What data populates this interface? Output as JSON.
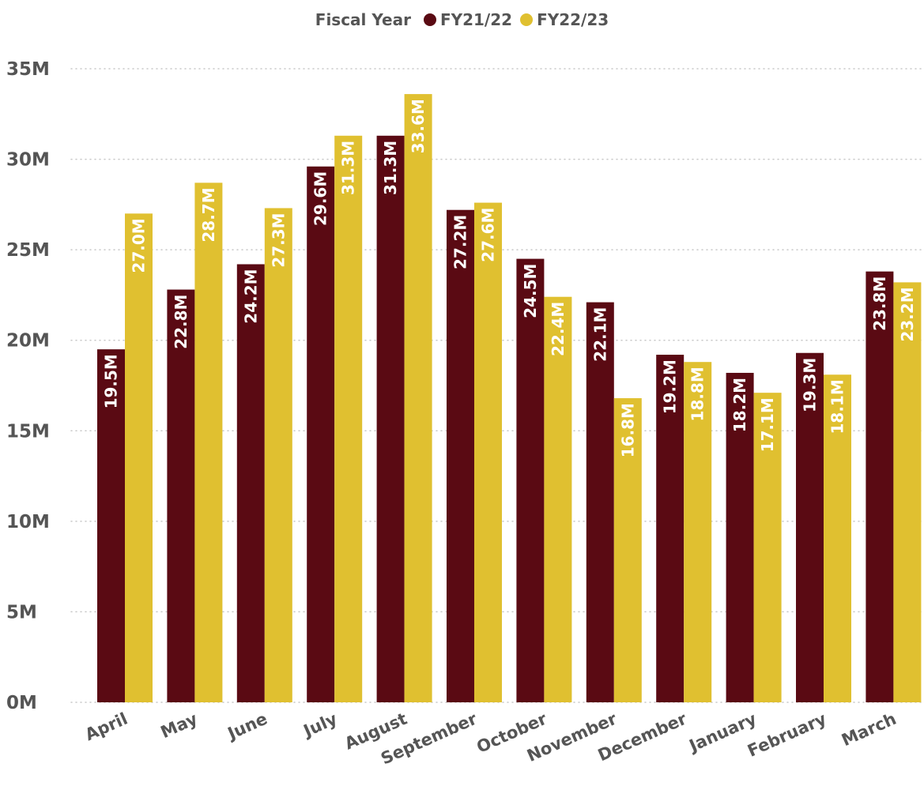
{
  "chart_data": {
    "type": "bar",
    "legend_title": "Fiscal Year",
    "legend_position": "top-center",
    "categories": [
      "April",
      "May",
      "June",
      "July",
      "August",
      "September",
      "October",
      "November",
      "December",
      "January",
      "February",
      "March"
    ],
    "series": [
      {
        "name": "FY21/22",
        "color": "#5a0a13",
        "values": [
          19.5,
          22.8,
          24.2,
          29.6,
          31.3,
          27.2,
          24.5,
          22.1,
          19.2,
          18.2,
          19.3,
          23.8
        ],
        "labels": [
          "19.5M",
          "22.8M",
          "24.2M",
          "29.6M",
          "31.3M",
          "27.2M",
          "24.5M",
          "22.1M",
          "19.2M",
          "18.2M",
          "19.3M",
          "23.8M"
        ]
      },
      {
        "name": "FY22/23",
        "color": "#e0c030",
        "values": [
          27.0,
          28.7,
          27.3,
          31.3,
          33.6,
          27.6,
          22.4,
          16.8,
          18.8,
          17.1,
          18.1,
          23.2
        ],
        "labels": [
          "27.0M",
          "28.7M",
          "27.3M",
          "31.3M",
          "33.6M",
          "27.6M",
          "22.4M",
          "16.8M",
          "18.8M",
          "17.1M",
          "18.1M",
          "23.2M"
        ]
      }
    ],
    "y_ticks": [
      0,
      5,
      10,
      15,
      20,
      25,
      30,
      35
    ],
    "y_tick_labels": [
      "0M",
      "5M",
      "10M",
      "15M",
      "20M",
      "25M",
      "30M",
      "35M"
    ],
    "ylim": [
      0,
      35
    ],
    "unit": "M",
    "grid": true
  }
}
